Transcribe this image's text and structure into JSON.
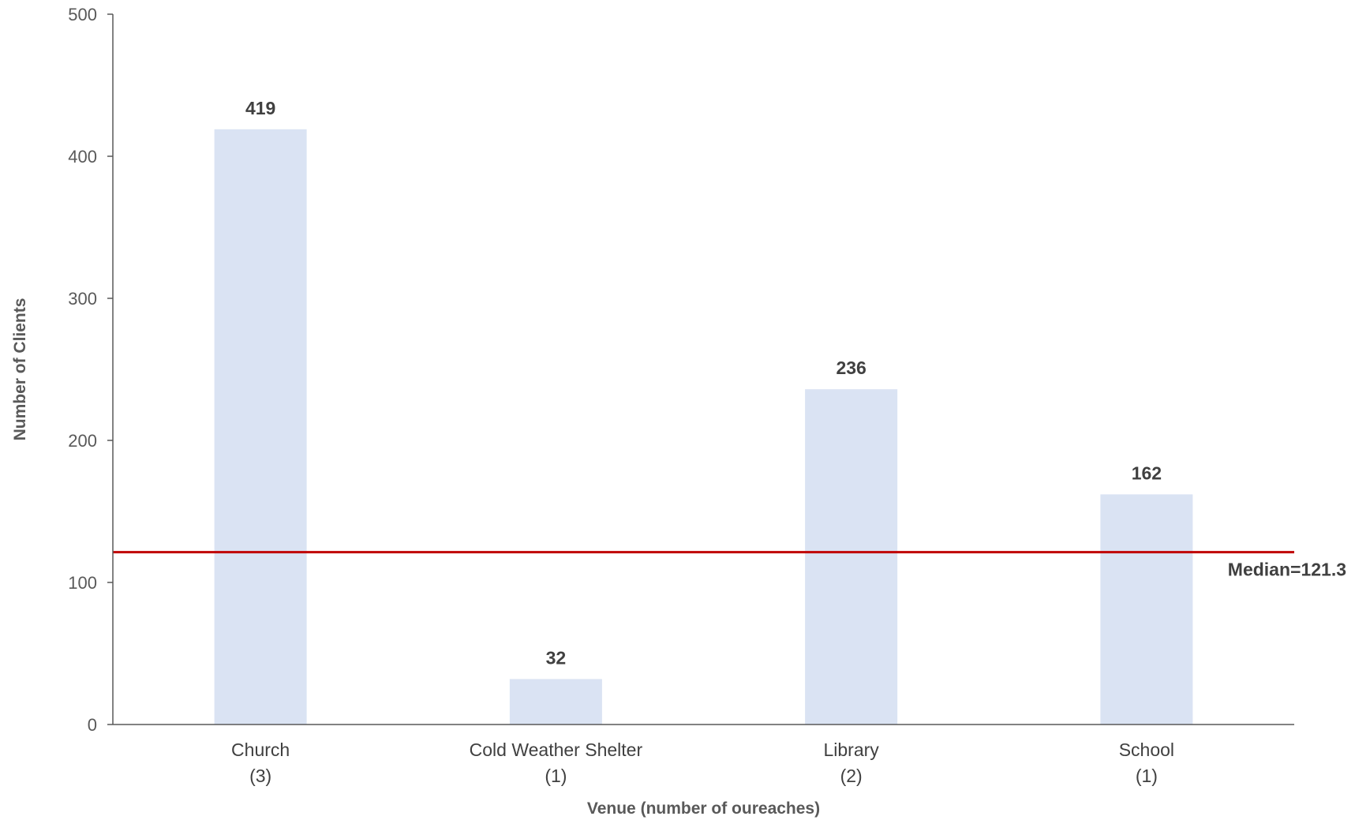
{
  "chart_data": {
    "type": "bar",
    "categories": [
      {
        "name": "Church",
        "count": "(3)"
      },
      {
        "name": "Cold Weather Shelter",
        "count": "(1)"
      },
      {
        "name": "Library",
        "count": "(2)"
      },
      {
        "name": "School",
        "count": "(1)"
      }
    ],
    "values": [
      419,
      32,
      236,
      162
    ],
    "xlabel": "Venue (number of oureaches)",
    "ylabel": "Number of Clients",
    "ylim": [
      0,
      500
    ],
    "yticks": [
      0,
      100,
      200,
      300,
      400,
      500
    ],
    "grid": false,
    "legend": "none",
    "reference_line": {
      "value": 121.3,
      "label": "Median=121.3"
    },
    "colors": {
      "bar": "#dae3f3",
      "median_line": "#c00000",
      "axis": "#595959"
    }
  }
}
